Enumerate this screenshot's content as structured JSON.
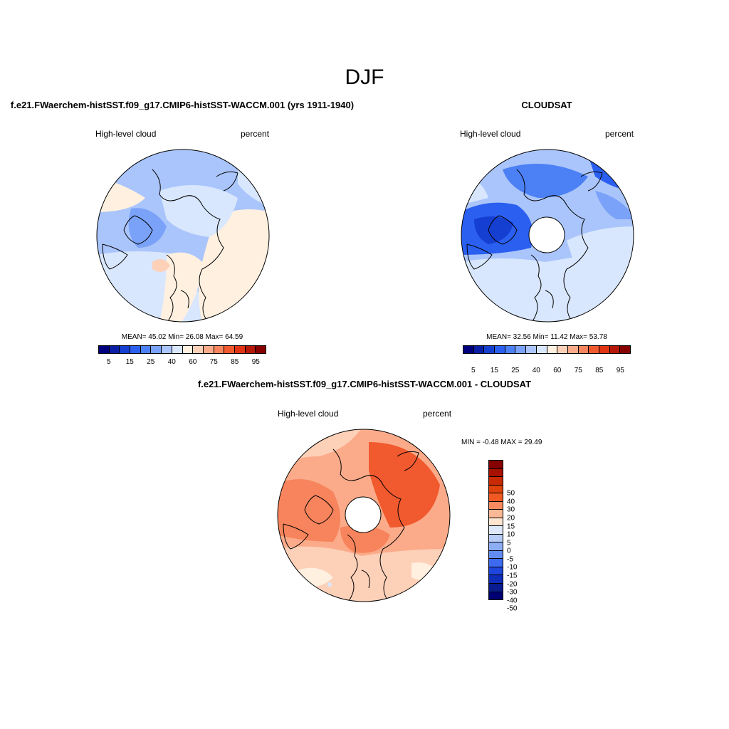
{
  "season": "DJF",
  "colors": {
    "diverging_16": [
      "#00007f",
      "#0a1ea6",
      "#153fd0",
      "#2a5ff0",
      "#4c80f5",
      "#7aa2f8",
      "#aac5fb",
      "#d8e7fd",
      "#fff0e0",
      "#fdd0b8",
      "#fbab8a",
      "#f7845c",
      "#f1592e",
      "#e03414",
      "#b51708",
      "#860000"
    ],
    "diff_17": [
      "#860000",
      "#a81100",
      "#c92a06",
      "#e0420c",
      "#f05a22",
      "#f98a5f",
      "#fbb896",
      "#fee6d0",
      "#dde9fb",
      "#b7cdf8",
      "#8daef5",
      "#628cf2",
      "#3d6aee",
      "#1f46dc",
      "#0f2db8",
      "#081c8f",
      "#000072"
    ]
  },
  "panels": [
    {
      "title": "f.e21.FWaerchem-histSST.f09_g17.CMIP6-histSST-WACCM.001 (yrs 1911-1940)",
      "variable": "High-level cloud",
      "units": "percent",
      "stats": "MEAN=  45.02  Min=  26.08  Max=  64.59",
      "colorbar_ticks": [
        "5",
        "15",
        "25",
        "40",
        "60",
        "75",
        "85",
        "95"
      ]
    },
    {
      "title": "CLOUDSAT",
      "variable": "High-level cloud",
      "units": "percent",
      "stats": "MEAN=  32.56  Min=  11.42  Max=  53.78",
      "colorbar_ticks": [
        "5",
        "15",
        "25",
        "40",
        "60",
        "75",
        "85",
        "95"
      ]
    },
    {
      "title": "f.e21.FWaerchem-histSST.f09_g17.CMIP6-histSST-WACCM.001 - CLOUDSAT",
      "variable": "High-level cloud",
      "units": "percent",
      "stats": "MIN =  -0.48 MAX =  29.49",
      "colorbar_ticks": [
        "50",
        "40",
        "30",
        "20",
        "15",
        "10",
        "5",
        "0",
        "-5",
        "-10",
        "-15",
        "-20",
        "-30",
        "-40",
        "-50"
      ]
    }
  ],
  "icons": {
    "coastline": "coastline-icon"
  }
}
